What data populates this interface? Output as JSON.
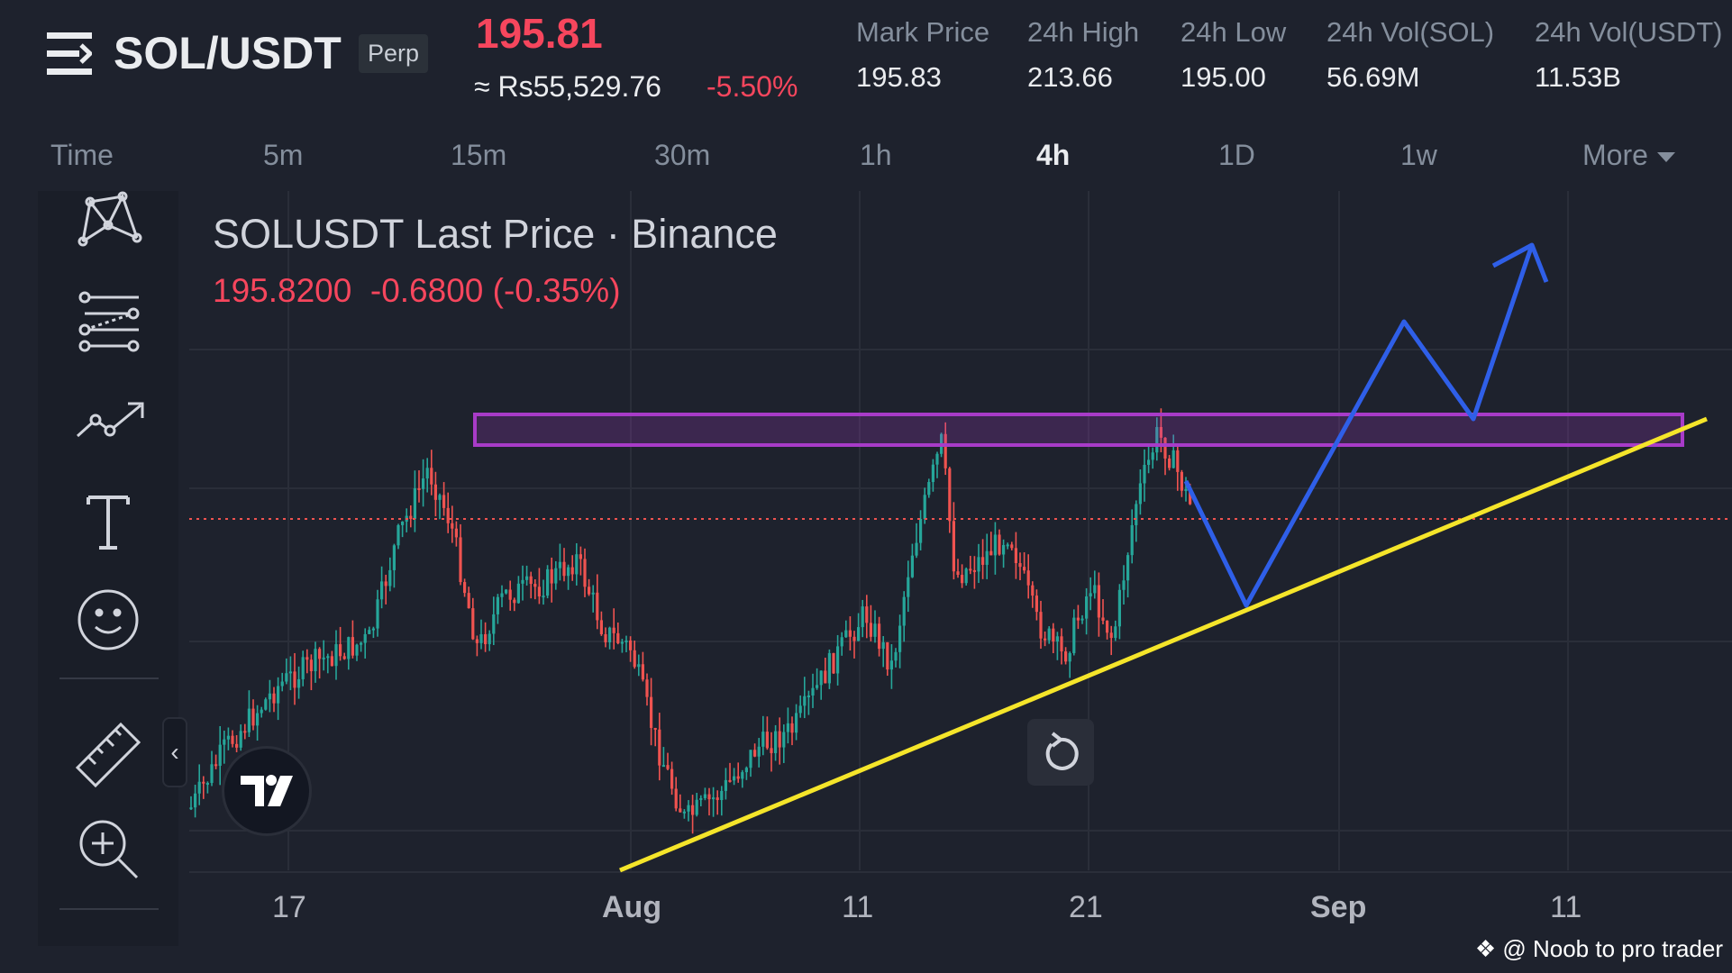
{
  "header": {
    "symbol": "SOL/USDT",
    "badge": "Perp",
    "last_price": "195.81",
    "fiat_price": "≈ Rs55,529.76",
    "change_pct": "-5.50%",
    "stats": [
      {
        "label": "Mark Price",
        "value": "195.83"
      },
      {
        "label": "24h High",
        "value": "213.66"
      },
      {
        "label": "24h Low",
        "value": "195.00"
      },
      {
        "label": "24h Vol(SOL)",
        "value": "56.69M"
      },
      {
        "label": "24h Vol(USDT)",
        "value": "11.53B"
      }
    ]
  },
  "timeframes": {
    "items": [
      "Time",
      "5m",
      "15m",
      "30m",
      "1h",
      "4h",
      "1D",
      "1w",
      "More"
    ],
    "active": "4h"
  },
  "toolbar": {
    "tools": [
      "pattern-tool-icon",
      "fib-retracement-icon",
      "trend-line-icon",
      "text-tool-icon",
      "emoji-icon",
      "ruler-icon",
      "zoom-in-icon"
    ]
  },
  "chart": {
    "title": "SOLUSDT Last Price · Binance",
    "ohlc": "195.8200  -0.6800 (-0.35%)",
    "x_labels": [
      "17",
      "Aug",
      "11",
      "21",
      "Sep",
      "11"
    ],
    "colors": {
      "up": "#26a69a",
      "down": "#ef5350",
      "support": "#f5e52a",
      "resistance": "#a83bc8",
      "projection": "#2f5fe8"
    }
  },
  "chart_data": {
    "type": "candlestick",
    "title": "SOLUSDT Last Price · Binance",
    "interval": "4h",
    "last_price": 195.82,
    "x_ticks": [
      "17",
      "Aug",
      "11",
      "21",
      "Sep",
      "11"
    ],
    "annotations": [
      {
        "type": "rectangle",
        "label": "resistance zone",
        "color": "#a83bc8"
      },
      {
        "type": "trend-line",
        "label": "rising support",
        "color": "#f5e52a"
      },
      {
        "type": "path",
        "label": "projected move",
        "color": "#2f5fe8"
      }
    ]
  },
  "watermark": "@ Noob to pro trader"
}
